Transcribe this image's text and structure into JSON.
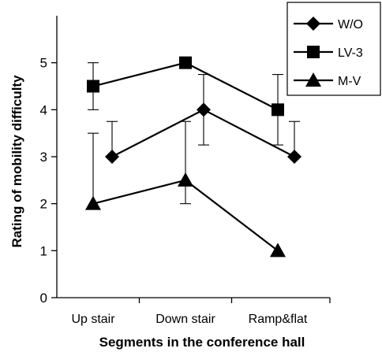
{
  "chart_data": {
    "type": "line",
    "xlabel": "Segments in the conference hall",
    "ylabel": "Rating of mobility difficulty",
    "ylim": [
      0,
      6
    ],
    "yticks": [
      0,
      1,
      2,
      3,
      4,
      5
    ],
    "grid": false,
    "legend_position": "top-right",
    "categories": [
      "Up stair",
      "Down stair",
      "Ramp&flat"
    ],
    "series": [
      {
        "name": "W/O",
        "marker": "diamond",
        "values": [
          3.0,
          4.0,
          3.0
        ],
        "error_upper": [
          3.75,
          4.75,
          3.75
        ],
        "error_lower": [
          3.0,
          3.25,
          3.0
        ]
      },
      {
        "name": "LV-3",
        "marker": "square",
        "values": [
          4.5,
          5.0,
          4.0
        ],
        "error_upper": [
          5.0,
          5.0,
          4.75
        ],
        "error_lower": [
          4.0,
          5.0,
          3.25
        ]
      },
      {
        "name": "M-V",
        "marker": "triangle",
        "values": [
          2.0,
          2.5,
          1.0
        ],
        "error_upper": [
          3.5,
          3.75,
          1.0
        ],
        "error_lower": [
          2.0,
          2.0,
          1.0
        ]
      }
    ]
  }
}
